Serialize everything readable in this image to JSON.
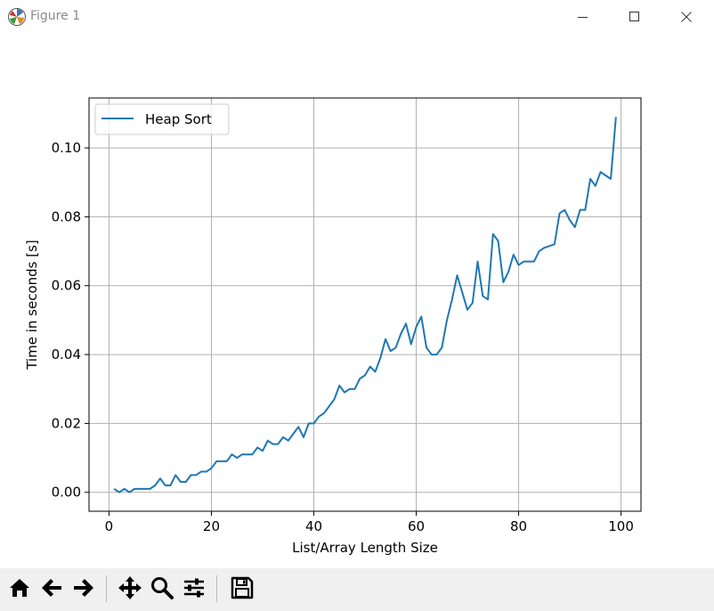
{
  "window": {
    "title": "Figure 1",
    "app_icon": "matplotlib-icon"
  },
  "toolbar": {
    "buttons": [
      "home-icon",
      "back-arrow-icon",
      "forward-arrow-icon",
      "pan-icon",
      "zoom-icon",
      "configure-subplots-icon",
      "save-icon"
    ]
  },
  "colors": {
    "series": "#1f77b4",
    "grid": "#b0b0b0",
    "toolbar_bg": "#f0f0f0"
  },
  "chart_data": {
    "type": "line",
    "title": "",
    "xlabel": "List/Array Length Size",
    "ylabel": "Time in seconds [s]",
    "xlim": [
      -3.9,
      103.9
    ],
    "ylim": [
      -0.0055,
      0.1145
    ],
    "xticks": [
      0,
      20,
      40,
      60,
      80,
      100
    ],
    "xtick_labels": [
      "0",
      "20",
      "40",
      "60",
      "80",
      "100"
    ],
    "yticks": [
      0.0,
      0.02,
      0.04,
      0.06,
      0.08,
      0.1
    ],
    "ytick_labels": [
      "0.00",
      "0.02",
      "0.04",
      "0.06",
      "0.08",
      "0.10"
    ],
    "grid": true,
    "legend_position": "upper-left",
    "series": [
      {
        "name": "Heap Sort",
        "x": [
          1,
          2,
          3,
          4,
          5,
          6,
          7,
          8,
          9,
          10,
          11,
          12,
          13,
          14,
          15,
          16,
          17,
          18,
          19,
          20,
          21,
          22,
          23,
          24,
          25,
          26,
          27,
          28,
          29,
          30,
          31,
          32,
          33,
          34,
          35,
          36,
          37,
          38,
          39,
          40,
          41,
          42,
          43,
          44,
          45,
          46,
          47,
          48,
          49,
          50,
          51,
          52,
          53,
          54,
          55,
          56,
          57,
          58,
          59,
          60,
          61,
          62,
          63,
          64,
          65,
          66,
          67,
          68,
          69,
          70,
          71,
          72,
          73,
          74,
          75,
          76,
          77,
          78,
          79,
          80,
          81,
          82,
          83,
          84,
          85,
          86,
          87,
          88,
          89,
          90,
          91,
          92,
          93,
          94,
          95,
          96,
          97,
          98,
          99
        ],
        "y": [
          0.001,
          0.0,
          0.001,
          0.0,
          0.001,
          0.001,
          0.001,
          0.001,
          0.002,
          0.004,
          0.002,
          0.002,
          0.005,
          0.003,
          0.003,
          0.005,
          0.005,
          0.006,
          0.006,
          0.007,
          0.009,
          0.009,
          0.009,
          0.011,
          0.01,
          0.011,
          0.011,
          0.011,
          0.013,
          0.012,
          0.015,
          0.014,
          0.014,
          0.016,
          0.015,
          0.017,
          0.019,
          0.016,
          0.02,
          0.02,
          0.022,
          0.023,
          0.025,
          0.027,
          0.031,
          0.029,
          0.03,
          0.03,
          0.033,
          0.034,
          0.0365,
          0.035,
          0.039,
          0.0445,
          0.041,
          0.042,
          0.046,
          0.049,
          0.043,
          0.048,
          0.051,
          0.042,
          0.04,
          0.04,
          0.042,
          0.05,
          0.056,
          0.063,
          0.058,
          0.053,
          0.055,
          0.067,
          0.057,
          0.056,
          0.075,
          0.073,
          0.061,
          0.064,
          0.069,
          0.066,
          0.067,
          0.067,
          0.067,
          0.07,
          0.071,
          0.0715,
          0.072,
          0.081,
          0.082,
          0.079,
          0.077,
          0.082,
          0.082,
          0.091,
          0.089,
          0.093,
          0.092,
          0.091,
          0.109
        ]
      }
    ]
  }
}
